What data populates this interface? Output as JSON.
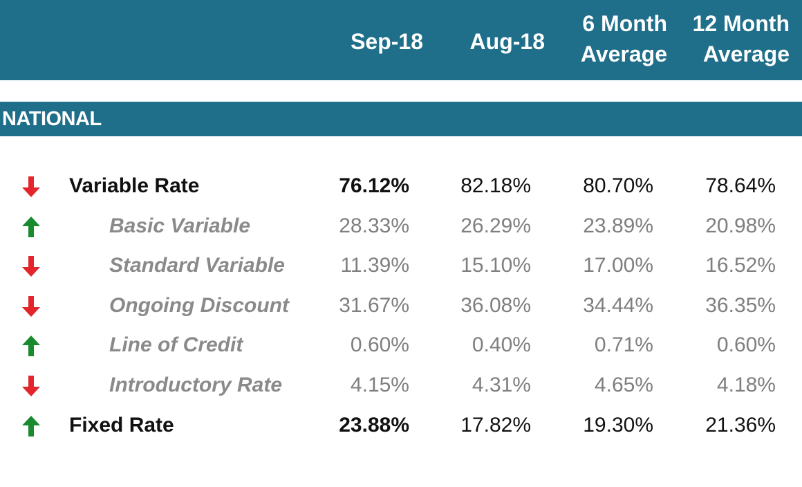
{
  "chart_data": {
    "type": "table",
    "columns": [
      "Sep-18",
      "Aug-18",
      "6 Month\nAverage",
      "12 Month\nAverage"
    ],
    "section": "NATIONAL",
    "up_color": "#1a8a2e",
    "down_color": "#e3262b",
    "header_color": "#1f6e8a",
    "rows": [
      {
        "label": "Variable Rate",
        "level": "main",
        "trend": "down",
        "values": [
          "76.12%",
          "82.18%",
          "80.70%",
          "78.64%"
        ]
      },
      {
        "label": "Basic Variable",
        "level": "sub",
        "trend": "up",
        "values": [
          "28.33%",
          "26.29%",
          "23.89%",
          "20.98%"
        ]
      },
      {
        "label": "Standard Variable",
        "level": "sub",
        "trend": "down",
        "values": [
          "11.39%",
          "15.10%",
          "17.00%",
          "16.52%"
        ]
      },
      {
        "label": "Ongoing Discount",
        "level": "sub",
        "trend": "down",
        "values": [
          "31.67%",
          "36.08%",
          "34.44%",
          "36.35%"
        ]
      },
      {
        "label": "Line of Credit",
        "level": "sub",
        "trend": "up",
        "values": [
          "0.60%",
          "0.40%",
          "0.71%",
          "0.60%"
        ]
      },
      {
        "label": "Introductory Rate",
        "level": "sub",
        "trend": "down",
        "values": [
          "4.15%",
          "4.31%",
          "4.65%",
          "4.18%"
        ]
      },
      {
        "label": "Fixed Rate",
        "level": "main",
        "trend": "up",
        "values": [
          "23.88%",
          "17.82%",
          "19.30%",
          "21.36%"
        ]
      }
    ]
  }
}
